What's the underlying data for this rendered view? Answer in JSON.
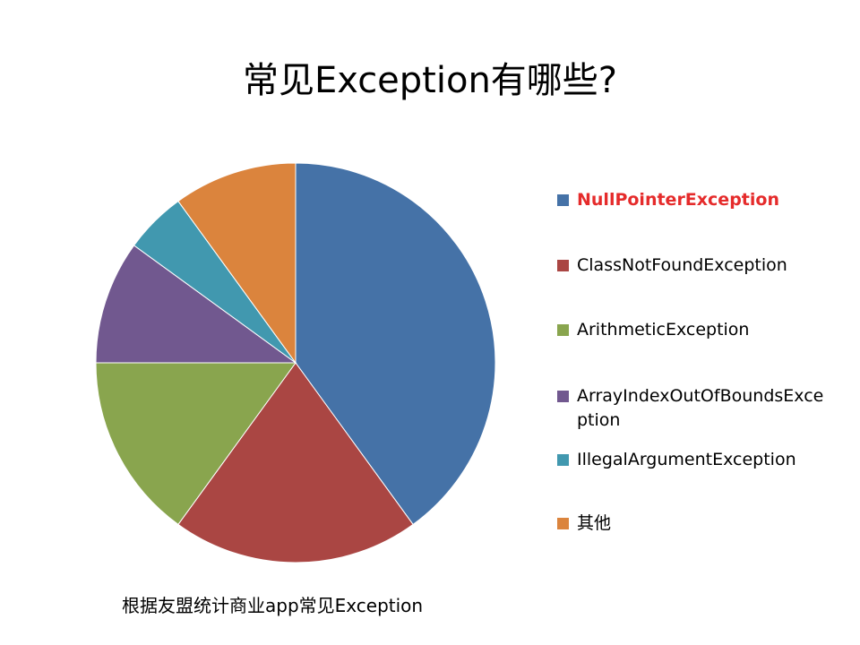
{
  "slide": {
    "title": "常见Exception有哪些?",
    "caption": "根据友盟统计商业app常见Exception"
  },
  "chart_data": {
    "type": "pie",
    "start_angle": "12 o'clock",
    "direction": "clockwise",
    "legend_position": "right",
    "categories": [
      "NullPointerException",
      "ClassNotFoundException",
      "ArithmeticException",
      "ArrayIndexOutOfBoundsException",
      "IllegalArgumentException",
      "其他"
    ],
    "values": [
      40,
      20,
      15,
      10,
      5,
      10
    ],
    "colors": [
      "#4572a7",
      "#aa4643",
      "#89a54e",
      "#71588f",
      "#4198af",
      "#db843d"
    ],
    "highlighted_category": "NullPointerException",
    "highlight_color": "#e52b2b"
  }
}
